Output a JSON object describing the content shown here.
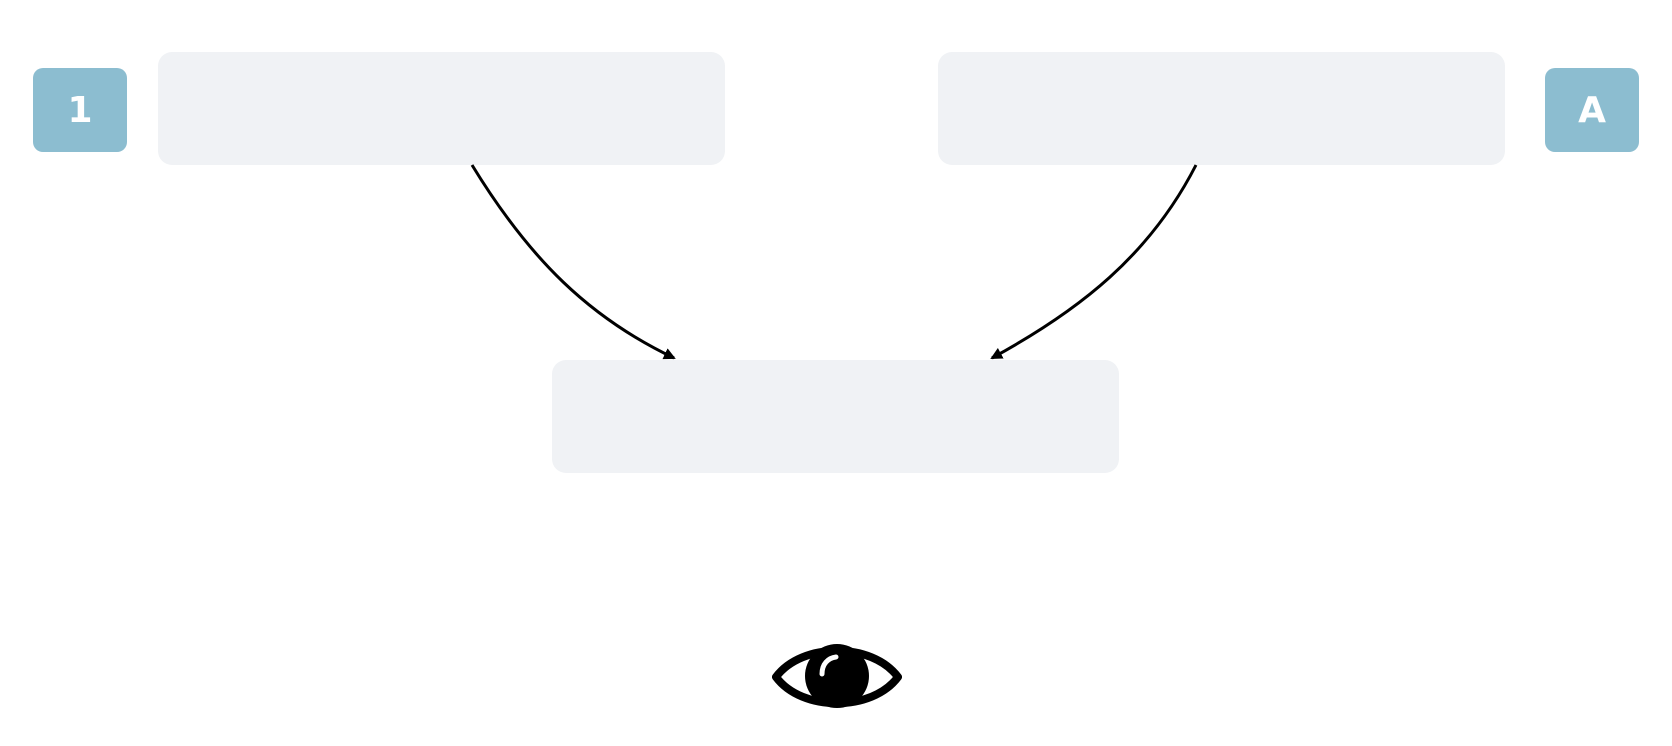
{
  "diagram": {
    "badges": {
      "left": {
        "text": "1",
        "color": "#8cbdd0"
      },
      "right": {
        "text": "A",
        "color": "#8cbdd0"
      }
    },
    "boxes": {
      "top_left": {
        "label": ""
      },
      "top_right": {
        "label": ""
      },
      "bottom_center": {
        "label": ""
      }
    },
    "box_color": "#f0f2f5",
    "arrow_color": "#000000",
    "icon": "eye-icon"
  }
}
